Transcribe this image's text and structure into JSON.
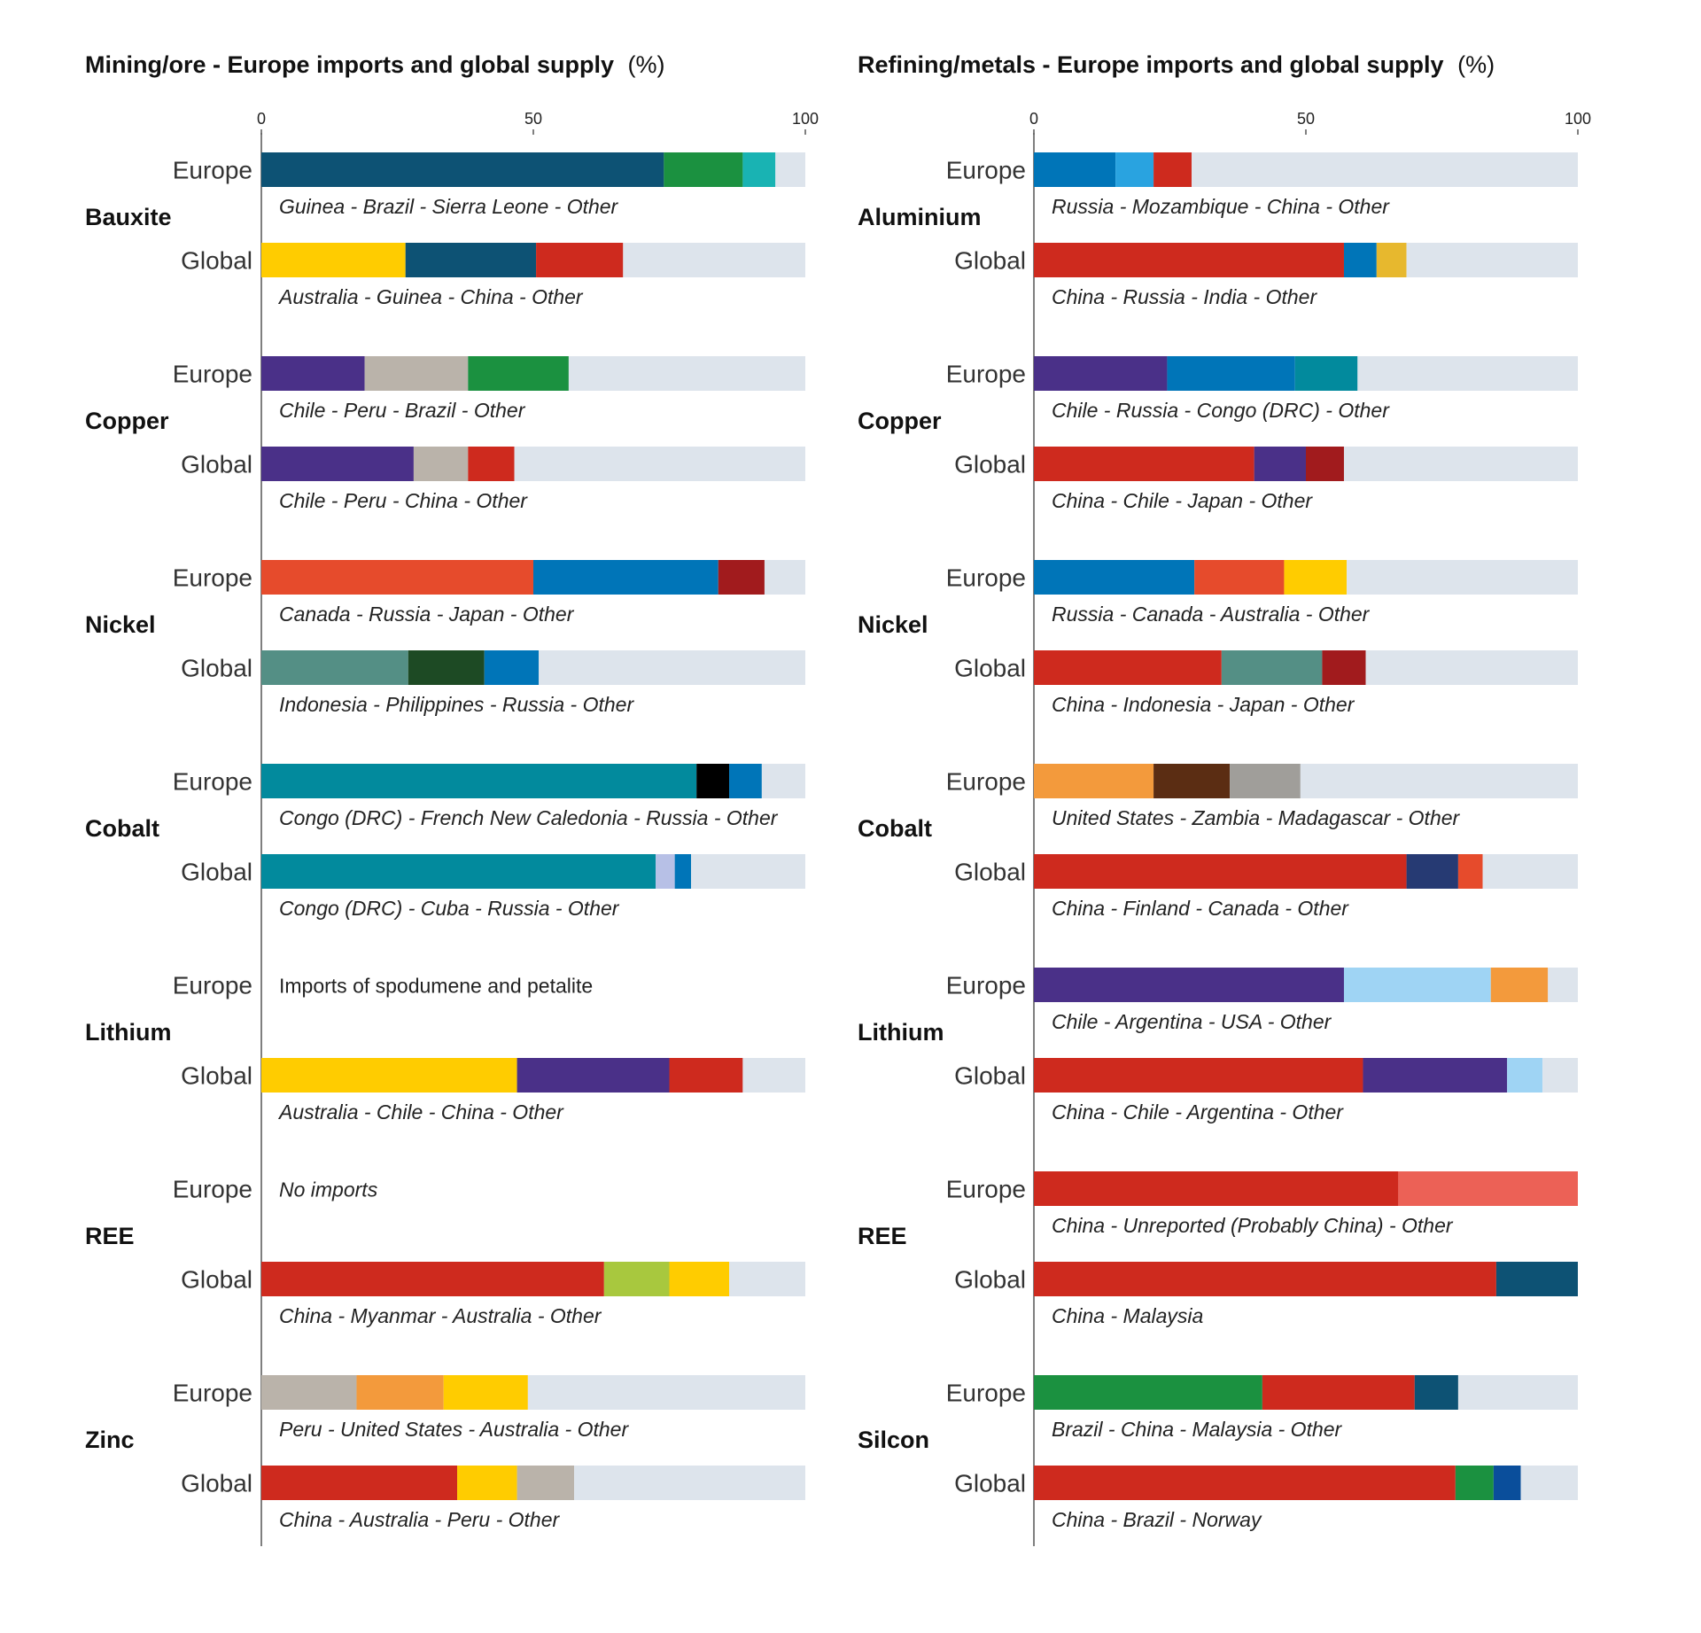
{
  "chart_data": [
    {
      "type": "bar",
      "stacked": true,
      "orientation": "horizontal",
      "title": "Mining/ore - Europe imports and global supply",
      "title_unit": "(%)",
      "xlim": [
        0,
        100
      ],
      "ticks": [
        0,
        50,
        100
      ],
      "gridlines": false,
      "groups": [
        {
          "name": "Bauxite",
          "rows": [
            {
              "label": "Europe",
              "caption": "Guinea - Brazil - Sierra Leone - Other",
              "segments": [
                {
                  "value": 74,
                  "color": "#0d5274"
                },
                {
                  "value": 14.5,
                  "color": "#1b9140"
                },
                {
                  "value": 6,
                  "color": "#19b3b3"
                },
                {
                  "value": 5.5,
                  "color": "#dde4ec"
                }
              ]
            },
            {
              "label": "Global",
              "caption": "Australia - Guinea - China - Other",
              "segments": [
                {
                  "value": 26.5,
                  "color": "#ffcc00"
                },
                {
                  "value": 24,
                  "color": "#0d5274"
                },
                {
                  "value": 16,
                  "color": "#ce2a1e"
                },
                {
                  "value": 33.5,
                  "color": "#dde4ec"
                }
              ]
            }
          ]
        },
        {
          "name": "Copper",
          "rows": [
            {
              "label": "Europe",
              "caption": "Chile - Peru - Brazil - Other",
              "segments": [
                {
                  "value": 19,
                  "color": "#4a3088"
                },
                {
                  "value": 19,
                  "color": "#bab3aa"
                },
                {
                  "value": 18.5,
                  "color": "#1b9140"
                },
                {
                  "value": 43.5,
                  "color": "#dde4ec"
                }
              ]
            },
            {
              "label": "Global",
              "caption": "Chile - Peru - China - Other",
              "segments": [
                {
                  "value": 28,
                  "color": "#4a3088"
                },
                {
                  "value": 10,
                  "color": "#bab3aa"
                },
                {
                  "value": 8.5,
                  "color": "#ce2a1e"
                },
                {
                  "value": 53.5,
                  "color": "#dde4ec"
                }
              ]
            }
          ]
        },
        {
          "name": "Nickel",
          "rows": [
            {
              "label": "Europe",
              "caption": "Canada - Russia - Japan - Other",
              "segments": [
                {
                  "value": 50,
                  "color": "#e64b2c"
                },
                {
                  "value": 34,
                  "color": "#0075b8"
                },
                {
                  "value": 8.5,
                  "color": "#a11b1d"
                },
                {
                  "value": 7.5,
                  "color": "#dde4ec"
                }
              ]
            },
            {
              "label": "Global",
              "caption": "Indonesia - Philippines - Russia - Other",
              "segments": [
                {
                  "value": 27,
                  "color": "#548f85"
                },
                {
                  "value": 14,
                  "color": "#1d4a24"
                },
                {
                  "value": 10,
                  "color": "#0075b8"
                },
                {
                  "value": 49,
                  "color": "#dde4ec"
                }
              ]
            }
          ]
        },
        {
          "name": "Cobalt",
          "rows": [
            {
              "label": "Europe",
              "caption": "Congo (DRC) - French New Caledonia - Russia - Other",
              "segments": [
                {
                  "value": 80,
                  "color": "#028a9d"
                },
                {
                  "value": 6,
                  "color": "#000000"
                },
                {
                  "value": 6,
                  "color": "#0075b8"
                },
                {
                  "value": 8,
                  "color": "#dde4ec"
                }
              ]
            },
            {
              "label": "Global",
              "caption": "Congo (DRC) - Cuba - Russia - Other",
              "segments": [
                {
                  "value": 72.5,
                  "color": "#028a9d"
                },
                {
                  "value": 3.5,
                  "color": "#b7c0e6"
                },
                {
                  "value": 3,
                  "color": "#0075b8"
                },
                {
                  "value": 21,
                  "color": "#dde4ec"
                }
              ]
            }
          ]
        },
        {
          "name": "Lithium",
          "rows": [
            {
              "label": "Europe",
              "caption": "Imports of spodumene and petalite",
              "segments": []
            },
            {
              "label": "Global",
              "caption": "Australia - Chile - China - Other",
              "segments": [
                {
                  "value": 47,
                  "color": "#ffcc00"
                },
                {
                  "value": 28,
                  "color": "#4a3088"
                },
                {
                  "value": 13.5,
                  "color": "#ce2a1e"
                },
                {
                  "value": 11.5,
                  "color": "#dde4ec"
                }
              ]
            }
          ]
        },
        {
          "name": "REE",
          "rows": [
            {
              "label": "Europe",
              "caption": "No imports",
              "segments": []
            },
            {
              "label": "Global",
              "caption": "China - Myanmar - Australia - Other",
              "segments": [
                {
                  "value": 63,
                  "color": "#ce2a1e"
                },
                {
                  "value": 12,
                  "color": "#a8c83e"
                },
                {
                  "value": 11,
                  "color": "#ffcc00"
                },
                {
                  "value": 14,
                  "color": "#dde4ec"
                }
              ]
            }
          ]
        },
        {
          "name": "Zinc",
          "rows": [
            {
              "label": "Europe",
              "caption": "Peru - United States - Australia - Other",
              "segments": [
                {
                  "value": 17.5,
                  "color": "#bab3aa"
                },
                {
                  "value": 16,
                  "color": "#f39a3c"
                },
                {
                  "value": 15.5,
                  "color": "#ffcc00"
                },
                {
                  "value": 51,
                  "color": "#dde4ec"
                }
              ]
            },
            {
              "label": "Global",
              "caption": "China - Australia - Peru - Other",
              "segments": [
                {
                  "value": 36,
                  "color": "#ce2a1e"
                },
                {
                  "value": 11,
                  "color": "#ffcc00"
                },
                {
                  "value": 10.5,
                  "color": "#bab3aa"
                },
                {
                  "value": 42.5,
                  "color": "#dde4ec"
                }
              ]
            }
          ]
        }
      ]
    },
    {
      "type": "bar",
      "stacked": true,
      "orientation": "horizontal",
      "title": "Refining/metals - Europe imports and global supply",
      "title_unit": "(%)",
      "xlim": [
        0,
        100
      ],
      "ticks": [
        0,
        50,
        100
      ],
      "gridlines": false,
      "groups": [
        {
          "name": "Aluminium",
          "rows": [
            {
              "label": "Europe",
              "caption": "Russia - Mozambique - China - Other",
              "segments": [
                {
                  "value": 15,
                  "color": "#0075b8"
                },
                {
                  "value": 7,
                  "color": "#29a3e0"
                },
                {
                  "value": 7,
                  "color": "#ce2a1e"
                },
                {
                  "value": 71,
                  "color": "#dde4ec"
                }
              ]
            },
            {
              "label": "Global",
              "caption": "China - Russia - India - Other",
              "segments": [
                {
                  "value": 57,
                  "color": "#ce2a1e"
                },
                {
                  "value": 6,
                  "color": "#0075b8"
                },
                {
                  "value": 5.5,
                  "color": "#e7b82e"
                },
                {
                  "value": 31.5,
                  "color": "#dde4ec"
                }
              ]
            }
          ]
        },
        {
          "name": "Copper",
          "rows": [
            {
              "label": "Europe",
              "caption": "Chile - Russia - Congo (DRC) - Other",
              "segments": [
                {
                  "value": 24.5,
                  "color": "#4a3088"
                },
                {
                  "value": 23.5,
                  "color": "#0075b8"
                },
                {
                  "value": 11.5,
                  "color": "#028a9d"
                },
                {
                  "value": 40.5,
                  "color": "#dde4ec"
                }
              ]
            },
            {
              "label": "Global",
              "caption": "China - Chile - Japan - Other",
              "segments": [
                {
                  "value": 40.5,
                  "color": "#ce2a1e"
                },
                {
                  "value": 9.5,
                  "color": "#4a3088"
                },
                {
                  "value": 7,
                  "color": "#a11b1d"
                },
                {
                  "value": 43,
                  "color": "#dde4ec"
                }
              ]
            }
          ]
        },
        {
          "name": "Nickel",
          "rows": [
            {
              "label": "Europe",
              "caption": "Russia - Canada - Australia - Other",
              "segments": [
                {
                  "value": 29.5,
                  "color": "#0075b8"
                },
                {
                  "value": 16.5,
                  "color": "#e64b2c"
                },
                {
                  "value": 11.5,
                  "color": "#ffcc00"
                },
                {
                  "value": 42.5,
                  "color": "#dde4ec"
                }
              ]
            },
            {
              "label": "Global",
              "caption": "China - Indonesia - Japan - Other",
              "segments": [
                {
                  "value": 34.5,
                  "color": "#ce2a1e"
                },
                {
                  "value": 18.5,
                  "color": "#548f85"
                },
                {
                  "value": 8,
                  "color": "#a11b1d"
                },
                {
                  "value": 39,
                  "color": "#dde4ec"
                }
              ]
            }
          ]
        },
        {
          "name": "Cobalt",
          "rows": [
            {
              "label": "Europe",
              "caption": "United States - Zambia - Madagascar - Other",
              "segments": [
                {
                  "value": 22,
                  "color": "#f39a3c"
                },
                {
                  "value": 14,
                  "color": "#5b2d13"
                },
                {
                  "value": 13,
                  "color": "#a09e9a"
                },
                {
                  "value": 51,
                  "color": "#dde4ec"
                }
              ]
            },
            {
              "label": "Global",
              "caption": "China - Finland - Canada - Other",
              "segments": [
                {
                  "value": 68.5,
                  "color": "#ce2a1e"
                },
                {
                  "value": 9.5,
                  "color": "#263a73"
                },
                {
                  "value": 4.5,
                  "color": "#e64b2c"
                },
                {
                  "value": 17.5,
                  "color": "#dde4ec"
                }
              ]
            }
          ]
        },
        {
          "name": "Lithium",
          "rows": [
            {
              "label": "Europe",
              "caption": "Chile - Argentina - USA - Other",
              "segments": [
                {
                  "value": 57,
                  "color": "#4a3088"
                },
                {
                  "value": 27,
                  "color": "#9fd4f4"
                },
                {
                  "value": 10.5,
                  "color": "#f39a3c"
                },
                {
                  "value": 5.5,
                  "color": "#dde4ec"
                }
              ]
            },
            {
              "label": "Global",
              "caption": "China - Chile - Argentina - Other",
              "segments": [
                {
                  "value": 60.5,
                  "color": "#ce2a1e"
                },
                {
                  "value": 26.5,
                  "color": "#4a3088"
                },
                {
                  "value": 6.5,
                  "color": "#9fd4f4"
                },
                {
                  "value": 6.5,
                  "color": "#dde4ec"
                }
              ]
            }
          ]
        },
        {
          "name": "REE",
          "rows": [
            {
              "label": "Europe",
              "caption": "China - Unreported (Probably China) - Other",
              "segments": [
                {
                  "value": 67,
                  "color": "#ce2a1e"
                },
                {
                  "value": 33,
                  "color": "#ec6156"
                }
              ]
            },
            {
              "label": "Global",
              "caption": "China - Malaysia",
              "segments": [
                {
                  "value": 85,
                  "color": "#ce2a1e"
                },
                {
                  "value": 15,
                  "color": "#0d5274"
                }
              ]
            }
          ]
        },
        {
          "name": "Silcon",
          "rows": [
            {
              "label": "Europe",
              "caption": "Brazil - China - Malaysia - Other",
              "segments": [
                {
                  "value": 42,
                  "color": "#1b9140"
                },
                {
                  "value": 28,
                  "color": "#ce2a1e"
                },
                {
                  "value": 8,
                  "color": "#0d5274"
                },
                {
                  "value": 22,
                  "color": "#dde4ec"
                }
              ]
            },
            {
              "label": "Global",
              "caption": "China - Brazil - Norway",
              "segments": [
                {
                  "value": 77.5,
                  "color": "#ce2a1e"
                },
                {
                  "value": 7,
                  "color": "#1b9140"
                },
                {
                  "value": 5,
                  "color": "#0a4e9b"
                },
                {
                  "value": 10.5,
                  "color": "#dde4ec"
                }
              ]
            }
          ]
        }
      ]
    }
  ]
}
